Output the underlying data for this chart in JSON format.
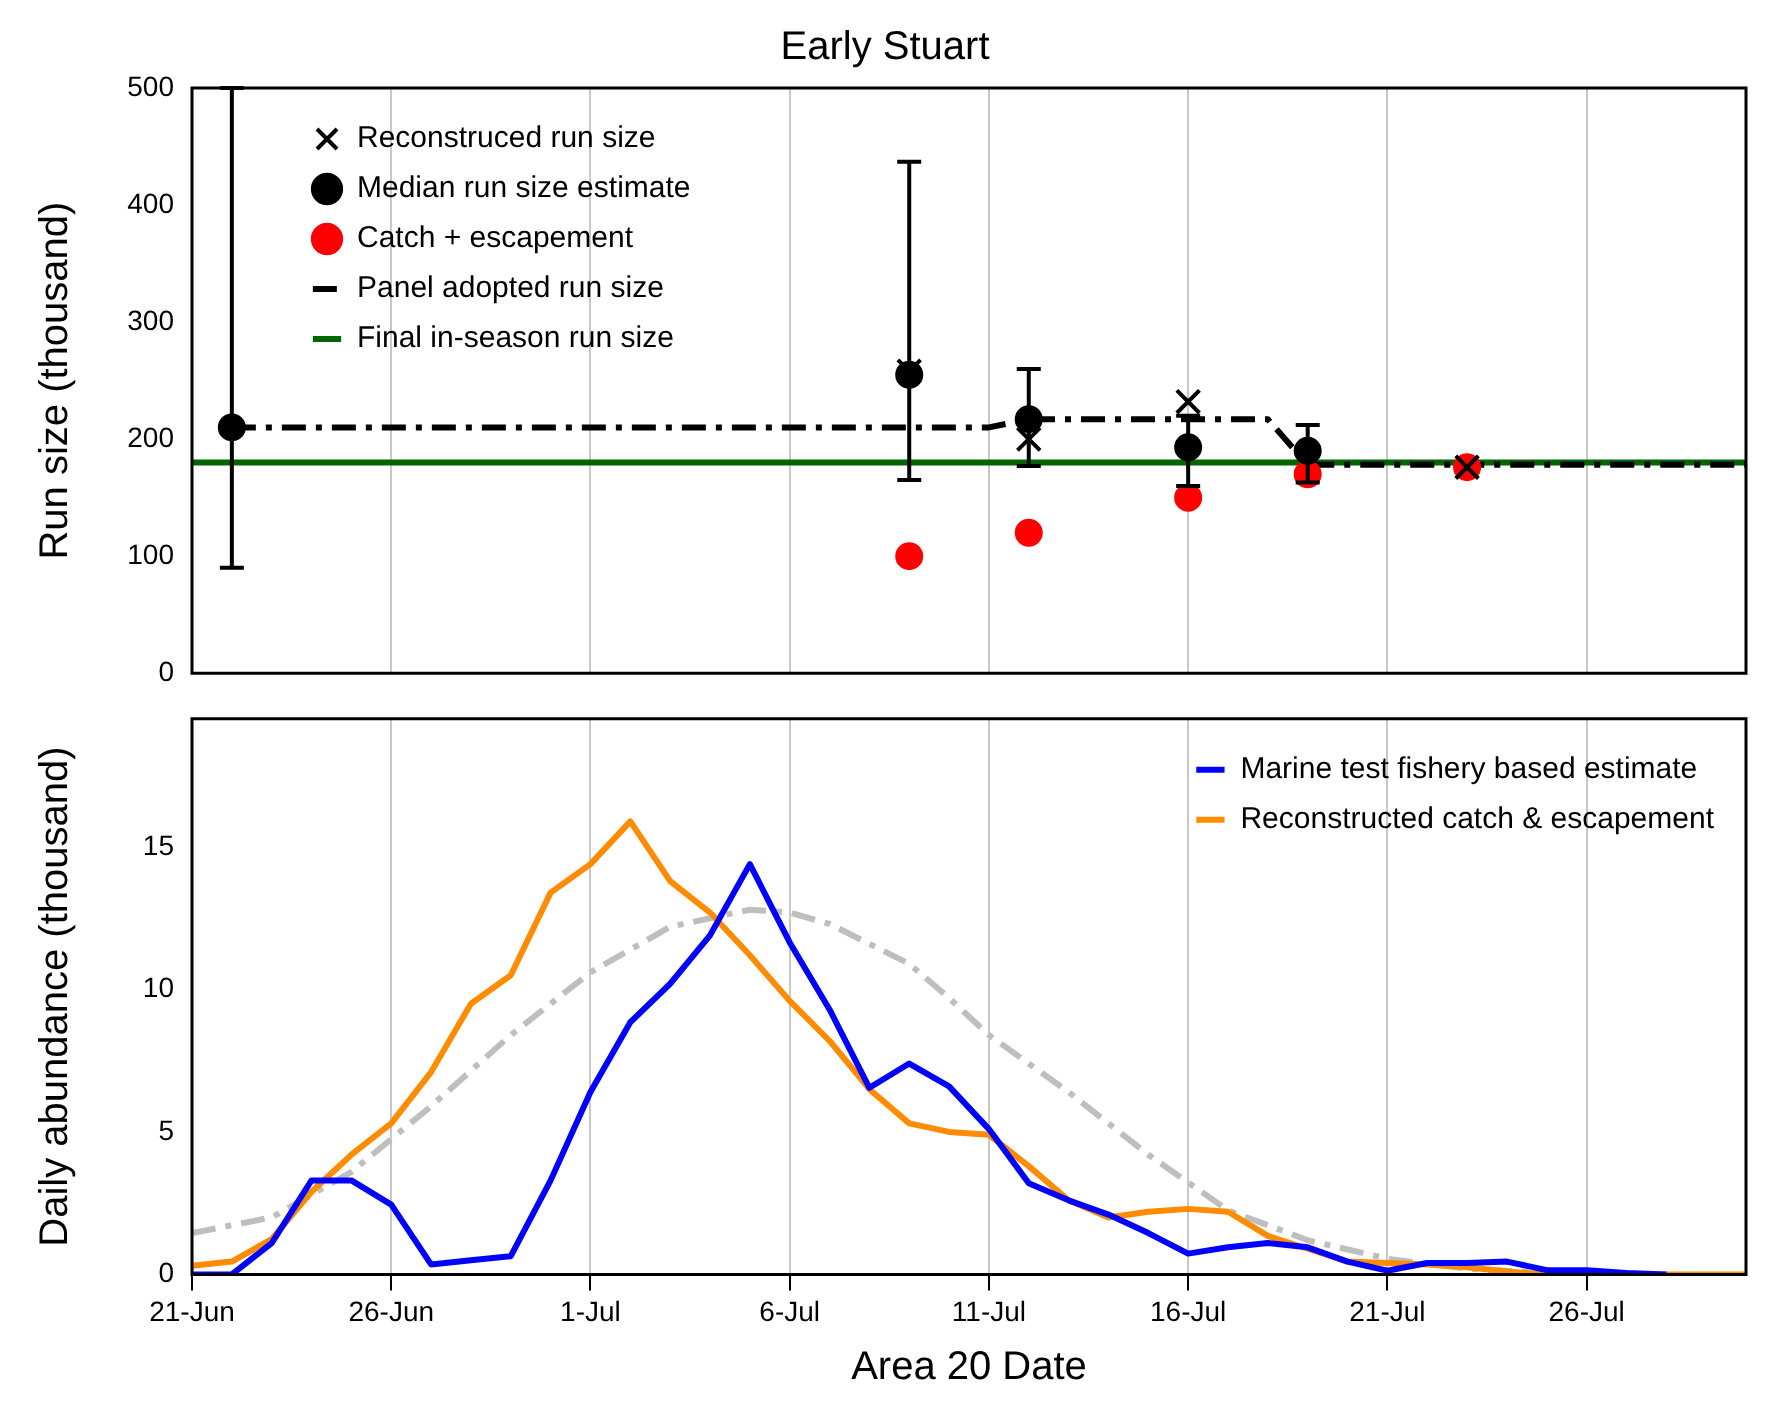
{
  "chart_data": [
    {
      "type": "scatter",
      "title": "Early Stuart",
      "ylabel": "Run size (thousand)",
      "xlim": [
        "--06-21",
        "--07-30"
      ],
      "xticks": [
        {
          "value": "--06-21",
          "label": "21-Jun"
        },
        {
          "value": "--06-26",
          "label": "26-Jun"
        },
        {
          "value": "--07-01",
          "label": "1-Jul"
        },
        {
          "value": "--07-06",
          "label": "6-Jul"
        },
        {
          "value": "--07-11",
          "label": "11-Jul"
        },
        {
          "value": "--07-16",
          "label": "16-Jul"
        },
        {
          "value": "--07-21",
          "label": "21-Jul"
        },
        {
          "value": "--07-26",
          "label": "26-Jul"
        }
      ],
      "ylim": [
        0,
        500
      ],
      "yticks": [
        0,
        100,
        200,
        300,
        400,
        500
      ],
      "grid": "x",
      "legend": "top left",
      "tick_labels": "y",
      "series": [
        {
          "name": "Median run size estimate",
          "type": "scatter",
          "marker": "circle",
          "color": "#000000",
          "x": [
            "--06-22",
            "--07-09",
            "--07-12",
            "--07-16",
            "--07-19"
          ],
          "values": [
            210,
            255,
            217,
            193,
            190
          ],
          "errors": [
            [
              90,
              500
            ],
            [
              165,
              437
            ],
            [
              177,
              260
            ],
            [
              160,
              220
            ],
            [
              163,
              212
            ]
          ]
        },
        {
          "name": "Reconstruced run size",
          "type": "scatter",
          "marker": "cross",
          "color": "#000000",
          "x": [
            "--07-09",
            "--07-12",
            "--07-16",
            "--07-19",
            "--07-23"
          ],
          "values": [
            258,
            200,
            232,
            null,
            176
          ]
        },
        {
          "name": "Catch + escapement",
          "type": "scatter",
          "marker": "circle",
          "color": "#ff0000",
          "x": [
            "--07-09",
            "--07-12",
            "--07-16",
            "--07-19",
            "--07-23"
          ],
          "values": [
            100,
            120,
            150,
            170,
            176
          ]
        },
        {
          "name": "Panel adopted run size",
          "type": "line",
          "marker": "none",
          "line_style": "dashed",
          "color": "#000000",
          "x": [
            "--06-22",
            "--07-11",
            "--07-12",
            "--07-18",
            "--07-19",
            "--07-30"
          ],
          "values": [
            210,
            210,
            217,
            217,
            178,
            178
          ]
        },
        {
          "name": "Final in-season run size",
          "type": "line",
          "marker": "none",
          "line_style": "solid",
          "color": "#006400",
          "x": [
            "--06-21",
            "--07-30"
          ],
          "values": [
            180,
            180
          ]
        }
      ]
    },
    {
      "type": "line",
      "xlabel": "Area 20 Date",
      "ylabel": "Daily abundance (thousand)",
      "xlim": [
        "--06-21",
        "--07-30"
      ],
      "xticks": [
        {
          "value": "--06-21",
          "label": "21-Jun"
        },
        {
          "value": "--06-26",
          "label": "26-Jun"
        },
        {
          "value": "--07-01",
          "label": "1-Jul"
        },
        {
          "value": "--07-06",
          "label": "6-Jul"
        },
        {
          "value": "--07-11",
          "label": "11-Jul"
        },
        {
          "value": "--07-16",
          "label": "16-Jul"
        },
        {
          "value": "--07-21",
          "label": "21-Jul"
        },
        {
          "value": "--07-26",
          "label": "26-Jul"
        }
      ],
      "ylim": [
        0,
        19.5
      ],
      "yticks": [
        0,
        5,
        10,
        15
      ],
      "grid": "x",
      "legend": "top right",
      "marker": "none",
      "series": [
        {
          "name": "Marine test fishery based estimate",
          "color": "#0000ff",
          "line_style": "solid",
          "x": [
            "--06-21",
            "--06-22",
            "--06-23",
            "--06-24",
            "--06-25",
            "--06-26",
            "--06-27",
            "--06-28",
            "--06-29",
            "--06-30",
            "--07-01",
            "--07-02",
            "--07-03",
            "--07-04",
            "--07-05",
            "--07-06",
            "--07-07",
            "--07-08",
            "--07-09",
            "--07-10",
            "--07-11",
            "--07-12",
            "--07-13",
            "--07-14",
            "--07-15",
            "--07-16",
            "--07-17",
            "--07-18",
            "--07-19",
            "--07-20",
            "--07-21",
            "--07-22",
            "--07-23",
            "--07-24",
            "--07-25",
            "--07-26",
            "--07-27",
            "--07-28"
          ],
          "values": [
            0,
            0,
            1.1,
            3.3,
            3.3,
            2.45,
            0.35,
            0.5,
            0.64,
            3.3,
            6.4,
            8.85,
            10.2,
            11.9,
            14.4,
            11.65,
            9.3,
            6.55,
            7.4,
            6.6,
            5.1,
            3.2,
            2.6,
            2.1,
            1.45,
            0.73,
            0.95,
            1.1,
            0.95,
            0.45,
            0.13,
            0.4,
            0.4,
            0.45,
            0.15,
            0.15,
            0.05,
            0
          ]
        },
        {
          "name": "Reconstructed catch & escapement",
          "color": "#ff8c00",
          "line_style": "solid",
          "x": [
            "--06-21",
            "--06-22",
            "--06-23",
            "--06-24",
            "--06-25",
            "--06-26",
            "--06-27",
            "--06-28",
            "--06-29",
            "--06-30",
            "--07-01",
            "--07-02",
            "--07-03",
            "--07-04",
            "--07-05",
            "--07-06",
            "--07-07",
            "--07-08",
            "--07-09",
            "--07-10",
            "--07-11",
            "--07-12",
            "--07-13",
            "--07-14",
            "--07-15",
            "--07-16",
            "--07-17",
            "--07-18",
            "--07-19",
            "--07-20",
            "--07-21",
            "--07-22",
            "--07-23",
            "--07-24",
            "--07-25",
            "--07-26",
            "--07-27",
            "--07-28",
            "--07-29",
            "--07-30"
          ],
          "values": [
            0.3,
            0.45,
            1.24,
            2.9,
            4.2,
            5.3,
            7.1,
            9.5,
            10.5,
            13.4,
            14.4,
            15.9,
            13.8,
            12.7,
            11.2,
            9.6,
            8.2,
            6.5,
            5.3,
            5.0,
            4.9,
            3.8,
            2.6,
            2.0,
            2.2,
            2.3,
            2.2,
            1.35,
            0.9,
            0.45,
            0.4,
            0.35,
            0.25,
            0.1,
            0,
            0,
            0,
            0,
            0,
            0
          ]
        },
        {
          "color": "#bebebe",
          "line_style": "dashed",
          "x": [
            "--06-21",
            "--06-23",
            "--06-25",
            "--06-27",
            "--06-29",
            "--07-01",
            "--07-03",
            "--07-05",
            "--07-06",
            "--07-07",
            "--07-09",
            "--07-10",
            "--07-11",
            "--07-13",
            "--07-15",
            "--07-17",
            "--07-19",
            "--07-21",
            "--07-23",
            "--07-25"
          ],
          "values": [
            1.45,
            2.0,
            3.6,
            5.9,
            8.4,
            10.6,
            12.2,
            12.8,
            12.7,
            12.3,
            10.9,
            9.7,
            8.4,
            6.4,
            4.2,
            2.25,
            1.2,
            0.55,
            0.2,
            0.05
          ]
        }
      ]
    }
  ]
}
